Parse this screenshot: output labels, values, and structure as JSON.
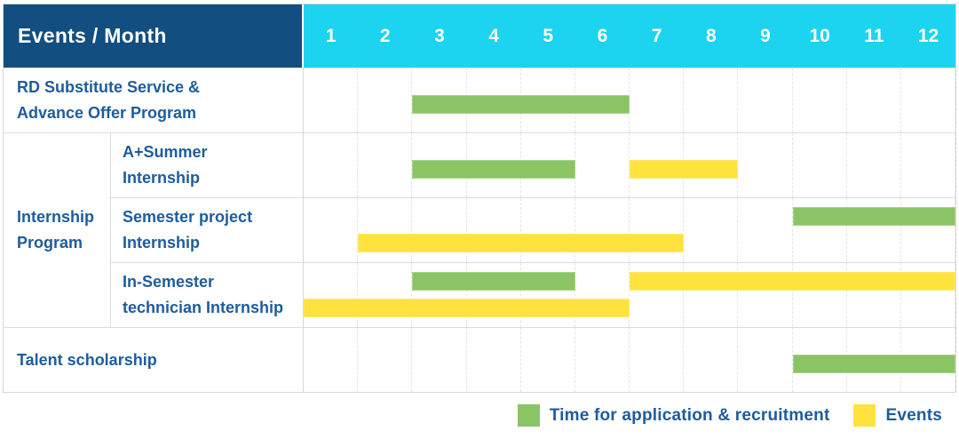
{
  "header": {
    "title": "Events / Month"
  },
  "colors": {
    "header_bg": "#124E80",
    "months_bg": "#1CD4EF",
    "label_text": "#1D5C9E",
    "green": "#8BC464",
    "yellow": "#FFE23E",
    "grid_line": "#E4E4E4",
    "row_border": "#DCDCDC",
    "outer_border": "#D7D7D7"
  },
  "chart_data": {
    "type": "bar",
    "subtype": "gantt-schedule",
    "title": "Events / Month",
    "x_categories": [
      "1",
      "2",
      "3",
      "4",
      "5",
      "6",
      "7",
      "8",
      "9",
      "10",
      "11",
      "12"
    ],
    "x_unit": "month",
    "x_range": [
      1,
      12
    ],
    "grid": true,
    "legend_position": "bottom-right",
    "legend": [
      {
        "label": "Time for application & recruitment",
        "color_key": "green",
        "color": "#8BC464"
      },
      {
        "label": "Events",
        "color_key": "yellow",
        "color": "#FFE23E"
      }
    ],
    "row_group": {
      "label": "Internship\nProgram",
      "first_row_index": 1,
      "row_span": 3
    },
    "rows": [
      {
        "label": "RD Substitute Service &\nAdvance Offer Program",
        "in_group": false,
        "bars": [
          {
            "series": "Time for application & recruitment",
            "color": "green",
            "start_month": 3,
            "end_month": 6,
            "line": "single"
          }
        ]
      },
      {
        "label": "A+Summer\nInternship",
        "in_group": true,
        "bars": [
          {
            "series": "Time for application & recruitment",
            "color": "green",
            "start_month": 3,
            "end_month": 5,
            "line": "single"
          },
          {
            "series": "Events",
            "color": "yellow",
            "start_month": 7,
            "end_month": 8,
            "line": "single"
          }
        ]
      },
      {
        "label": "Semester project\nInternship",
        "in_group": true,
        "bars": [
          {
            "series": "Time for application & recruitment",
            "color": "green",
            "start_month": 10,
            "end_month": 12,
            "line": "top"
          },
          {
            "series": "Events",
            "color": "yellow",
            "start_month": 2,
            "end_month": 7,
            "line": "bottom"
          }
        ]
      },
      {
        "label": "In-Semester\ntechnician Internship",
        "in_group": true,
        "bars": [
          {
            "series": "Time for application & recruitment",
            "color": "green",
            "start_month": 3,
            "end_month": 5,
            "line": "top"
          },
          {
            "series": "Events",
            "color": "yellow",
            "start_month": 7,
            "end_month": 12,
            "line": "top"
          },
          {
            "series": "Events",
            "color": "yellow",
            "start_month": 1,
            "end_month": 6,
            "line": "bottom"
          }
        ]
      },
      {
        "label": "Talent scholarship",
        "in_group": false,
        "bars": [
          {
            "series": "Time for application & recruitment",
            "color": "green",
            "start_month": 10,
            "end_month": 12,
            "line": "single"
          }
        ]
      }
    ]
  }
}
